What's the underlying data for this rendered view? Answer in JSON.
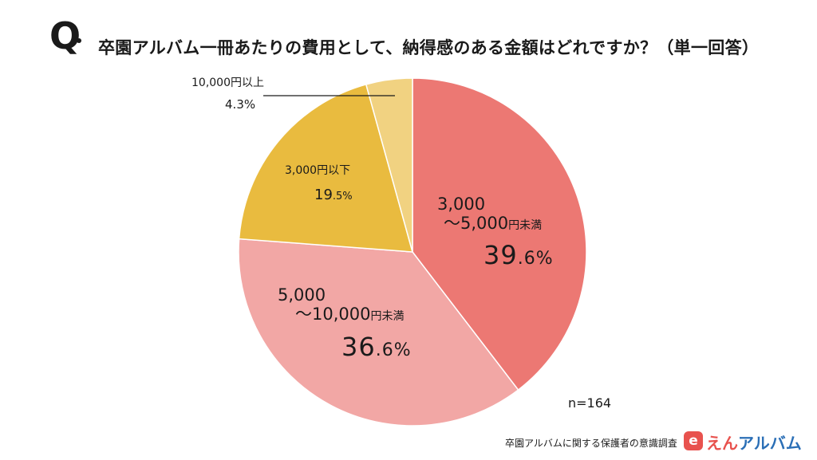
{
  "header": {
    "q_mark": "Q",
    "question": "卒園アルバム一冊あたりの費用として、納得感のある金額はどれですか？（単一回答）"
  },
  "chart_data": {
    "type": "pie",
    "start_angle_deg": 0,
    "direction": "clockwise",
    "slices": [
      {
        "label_line1": "3,000",
        "label_line2": "～5,000",
        "unit": "円未満",
        "value": 39.6,
        "pct_int": "39",
        "pct_dec": ".6%",
        "color": "#ec7873"
      },
      {
        "label_line1": "5,000",
        "label_line2": "～10,000",
        "unit": "円未満",
        "value": 36.6,
        "pct_int": "36",
        "pct_dec": ".6%",
        "color": "#f2a7a5"
      },
      {
        "label": "3,000円以下",
        "value": 19.5,
        "pct_int": "19",
        "pct_dec": ".5%",
        "color": "#e9bb3f"
      },
      {
        "label": "10,000円以上",
        "value": 4.3,
        "pct_int": "4",
        "pct_dec": ".3%",
        "color": "#f1d281"
      }
    ],
    "n": "n=164"
  },
  "footer": {
    "survey_name": "卒園アルバムに関する保護者の意識調査",
    "logo_letter": "e",
    "logo_en": "えん",
    "logo_album": "アルバム"
  }
}
